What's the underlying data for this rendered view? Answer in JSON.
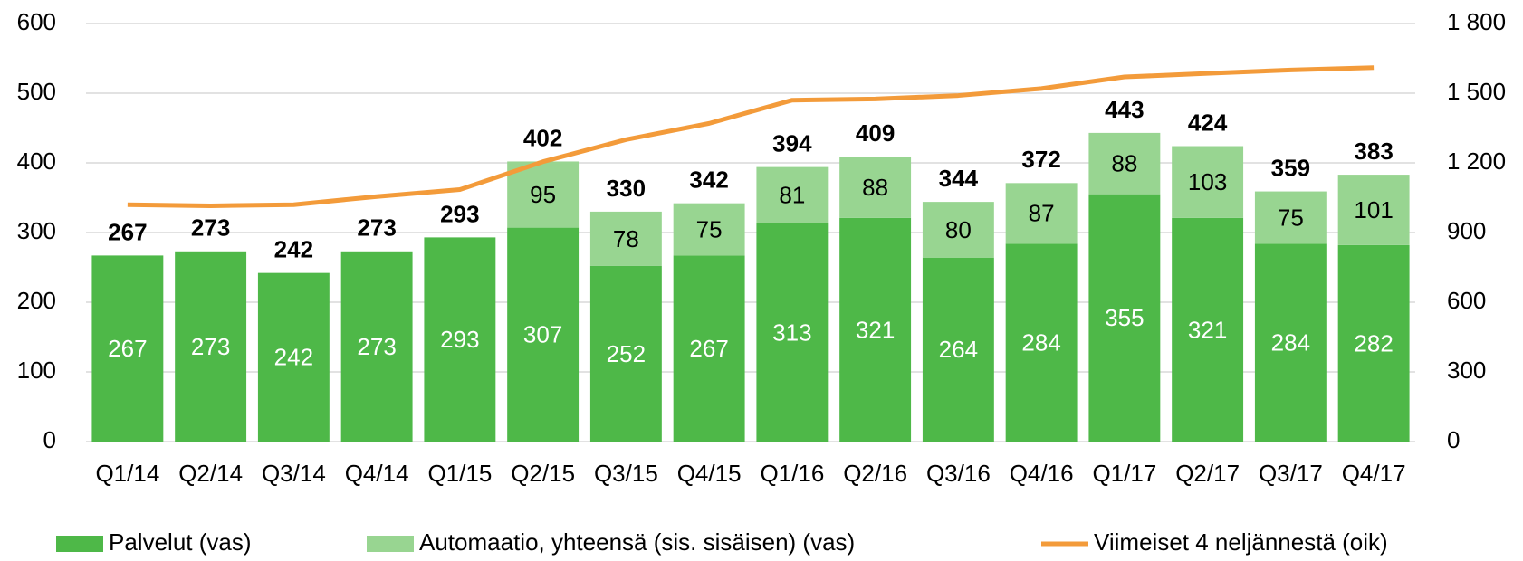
{
  "chart_data": {
    "type": "bar",
    "categories": [
      "Q1/14",
      "Q2/14",
      "Q3/14",
      "Q4/14",
      "Q1/15",
      "Q2/15",
      "Q3/15",
      "Q4/15",
      "Q1/16",
      "Q2/16",
      "Q3/16",
      "Q4/16",
      "Q1/17",
      "Q2/17",
      "Q3/17",
      "Q4/17"
    ],
    "series": [
      {
        "name": "Palvelut (vas)",
        "color": "#4eb848",
        "values": [
          267,
          273,
          242,
          273,
          293,
          307,
          252,
          267,
          313,
          321,
          264,
          284,
          355,
          321,
          284,
          282
        ]
      },
      {
        "name": "Automaatio, yhteensä (sis. sisäisen) (vas)",
        "color": "#98d591",
        "values": [
          null,
          null,
          null,
          null,
          null,
          95,
          78,
          75,
          81,
          88,
          80,
          87,
          88,
          103,
          75,
          101
        ]
      },
      {
        "name": "Viimeiset 4 neljännestä (oik)",
        "color": "#f39b3a",
        "axis": "y2",
        "type": "line",
        "values": [
          1020,
          1015,
          1020,
          1055,
          1085,
          1205,
          1300,
          1370,
          1470,
          1475,
          1490,
          1520,
          1570,
          1585,
          1600,
          1610
        ]
      }
    ],
    "totals": [
      267,
      273,
      242,
      273,
      293,
      402,
      330,
      342,
      394,
      409,
      344,
      372,
      443,
      424,
      359,
      383
    ],
    "ylim": [
      0,
      600
    ],
    "yticks": [
      0,
      100,
      200,
      300,
      400,
      500,
      600
    ],
    "y2lim": [
      0,
      1800
    ],
    "y2ticks": [
      0,
      {
        "value": 300,
        "label": "300"
      },
      600,
      900,
      {
        "value": 1200,
        "label": "1 200"
      },
      {
        "value": 1500,
        "label": "1 500"
      },
      {
        "value": 1800,
        "label": "1 800"
      }
    ],
    "grid": true
  }
}
